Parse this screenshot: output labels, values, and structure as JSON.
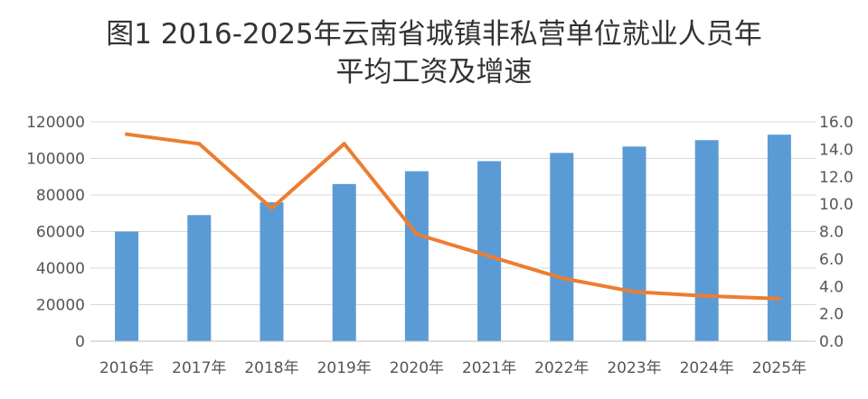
{
  "chart_data": {
    "type": "bar+line",
    "title": "图1 2016-2025年云南省城镇非私营单位就业人员年平均工资及增速",
    "title_lines": [
      "图1 2016-2025年云南省城镇非私营单位就业人员年",
      "平均工资及增速"
    ],
    "categories": [
      "2016年",
      "2017年",
      "2018年",
      "2019年",
      "2020年",
      "2021年",
      "2022年",
      "2023年",
      "2024年",
      "2025年"
    ],
    "series": [
      {
        "type": "bar",
        "axis": "left",
        "color": "#5b9bd5",
        "values": [
          60000,
          69000,
          76000,
          86000,
          93000,
          98500,
          103000,
          106500,
          110000,
          113000
        ]
      },
      {
        "type": "line",
        "axis": "right",
        "color": "#ed7d31",
        "values": [
          15.1,
          14.4,
          9.7,
          14.4,
          7.8,
          6.2,
          4.6,
          3.6,
          3.3,
          3.1
        ]
      }
    ],
    "y_left": {
      "lim": [
        0,
        120000
      ],
      "ticks": [
        0,
        20000,
        40000,
        60000,
        80000,
        100000,
        120000
      ],
      "tick_labels": [
        "0",
        "20000",
        "40000",
        "60000",
        "80000",
        "100000",
        "120000"
      ]
    },
    "y_right": {
      "lim": [
        0,
        16
      ],
      "ticks": [
        0,
        2,
        4,
        6,
        8,
        10,
        12,
        14,
        16
      ],
      "tick_labels": [
        "0.0",
        "2.0",
        "4.0",
        "6.0",
        "8.0",
        "10.0",
        "12.0",
        "14.0",
        "16.0"
      ]
    },
    "grid": true,
    "gridline_color": "#d9d9d9",
    "legend": "none"
  }
}
